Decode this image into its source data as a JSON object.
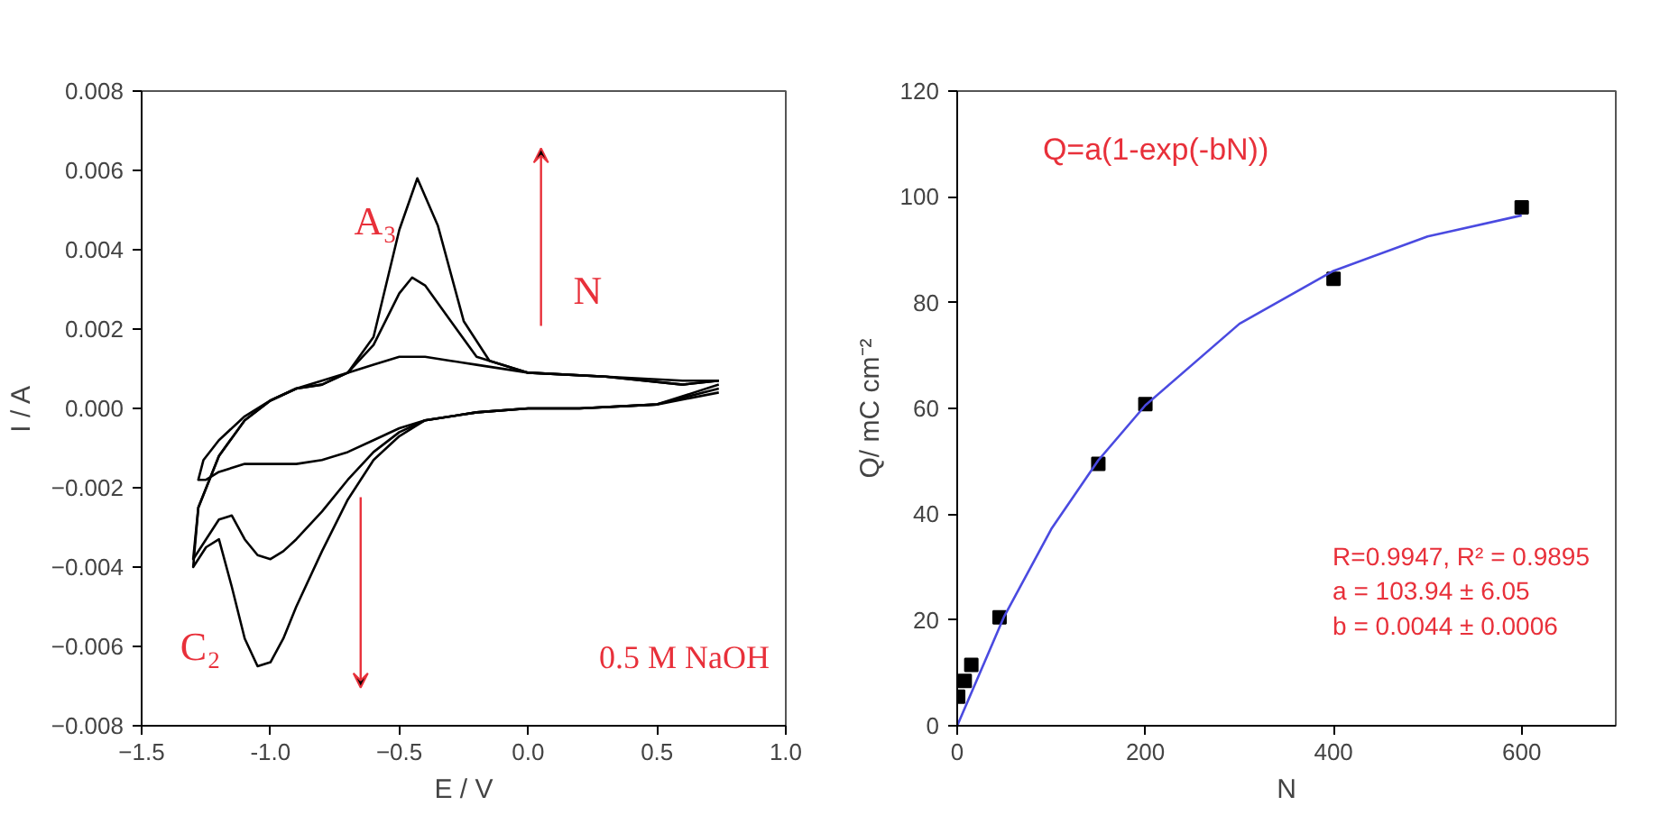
{
  "chart_data": [
    {
      "type": "line",
      "xlabel": "E / V",
      "ylabel": "I / A",
      "xlim": [
        -1.5,
        1.0
      ],
      "ylim": [
        -0.008,
        0.008
      ],
      "xticks": [
        -1.5,
        {
          "value": -1.0,
          "label": "-1.0"
        },
        -0.5,
        {
          "value": 0.0,
          "label": "0.0"
        },
        0.5,
        {
          "value": 1.0,
          "label": "1.0"
        }
      ],
      "yticks": [
        -0.008,
        -0.006,
        -0.004,
        -0.002,
        {
          "value": 0.0,
          "label": "0.000"
        },
        0.002,
        0.004,
        0.006,
        0.008
      ],
      "grid": false,
      "series": [
        {
          "color": "#000000",
          "x": [
            0.74,
            0.5,
            0.2,
            0.0,
            -0.2,
            -0.4,
            -0.5,
            -0.6,
            -0.7,
            -0.8,
            -0.9,
            -1.0,
            -1.1,
            -1.2,
            -1.25,
            -1.28,
            -1.26,
            -1.2,
            -1.1,
            -1.0,
            -0.9,
            -0.8,
            -0.7,
            -0.6,
            -0.5,
            -0.4,
            -0.3,
            -0.2,
            0.0,
            0.3,
            0.6,
            0.74
          ],
          "values": [
            0.0004,
            0.0001,
            0.0,
            0.0,
            -0.0001,
            -0.0003,
            -0.0005,
            -0.0008,
            -0.0011,
            -0.0013,
            -0.0014,
            -0.0014,
            -0.0014,
            -0.0016,
            -0.0018,
            -0.0018,
            -0.0013,
            -0.0008,
            -0.0002,
            0.0002,
            0.0005,
            0.0007,
            0.0009,
            0.0011,
            0.0013,
            0.0013,
            0.0012,
            0.0011,
            0.0009,
            0.0008,
            0.0007,
            0.0007
          ]
        },
        {
          "color": "#000000",
          "x": [
            0.74,
            0.5,
            0.2,
            0.0,
            -0.2,
            -0.4,
            -0.5,
            -0.6,
            -0.7,
            -0.8,
            -0.9,
            -0.95,
            -1.0,
            -1.05,
            -1.1,
            -1.15,
            -1.2,
            -1.25,
            -1.3,
            -1.28,
            -1.2,
            -1.1,
            -1.0,
            -0.9,
            -0.8,
            -0.7,
            -0.6,
            -0.5,
            -0.45,
            -0.4,
            -0.3,
            -0.2,
            0.0,
            0.3,
            0.6,
            0.74
          ],
          "values": [
            0.0005,
            0.0001,
            0.0,
            0.0,
            -0.0001,
            -0.0003,
            -0.0006,
            -0.0011,
            -0.0018,
            -0.0026,
            -0.0033,
            -0.0036,
            -0.0038,
            -0.0037,
            -0.0033,
            -0.0027,
            -0.0028,
            -0.0033,
            -0.0038,
            -0.0025,
            -0.0012,
            -0.0003,
            0.0002,
            0.0005,
            0.0006,
            0.0009,
            0.0016,
            0.0029,
            0.0033,
            0.0031,
            0.0022,
            0.0013,
            0.0009,
            0.0008,
            0.0006,
            0.0007
          ]
        },
        {
          "color": "#000000",
          "x": [
            0.74,
            0.5,
            0.2,
            0.0,
            -0.2,
            -0.4,
            -0.5,
            -0.6,
            -0.7,
            -0.8,
            -0.9,
            -0.95,
            -1.0,
            -1.05,
            -1.1,
            -1.15,
            -1.2,
            -1.25,
            -1.3,
            -1.28,
            -1.2,
            -1.1,
            -1.0,
            -0.9,
            -0.8,
            -0.7,
            -0.6,
            -0.5,
            -0.43,
            -0.35,
            -0.25,
            -0.15,
            0.0,
            0.3,
            0.6,
            0.74
          ],
          "values": [
            0.0006,
            0.0001,
            0.0,
            0.0,
            -0.0001,
            -0.0003,
            -0.0007,
            -0.0013,
            -0.0023,
            -0.0036,
            -0.005,
            -0.0058,
            -0.0064,
            -0.0065,
            -0.0058,
            -0.0045,
            -0.0033,
            -0.0035,
            -0.004,
            -0.0025,
            -0.0012,
            -0.0003,
            0.0002,
            0.0005,
            0.0006,
            0.0009,
            0.0018,
            0.0045,
            0.0058,
            0.0046,
            0.0022,
            0.0012,
            0.0009,
            0.0008,
            0.0006,
            0.0007
          ]
        }
      ],
      "annotations": [
        "A₃",
        "C₂",
        "N",
        "0.5 M NaOH"
      ]
    },
    {
      "type": "scatter",
      "xlabel": "N",
      "ylabel": "Q/ mC cm⁻²",
      "xlim": [
        0,
        700
      ],
      "ylim": [
        0,
        120
      ],
      "xticks": [
        0,
        200,
        400,
        600
      ],
      "yticks": [
        0,
        20,
        40,
        60,
        80,
        100,
        120
      ],
      "grid": false,
      "series": [
        {
          "color": "#000000",
          "marker": "square",
          "x": [
            1,
            8,
            15,
            45,
            150,
            200,
            400,
            600
          ],
          "values": [
            5.5,
            8.5,
            11.5,
            20.5,
            49.5,
            60.8,
            84.5,
            98
          ]
        },
        {
          "type": "line",
          "color": "#4a4ae0",
          "x": [
            0,
            50,
            100,
            150,
            200,
            300,
            400,
            500,
            600
          ],
          "values": [
            0,
            20.7,
            37.2,
            50.2,
            60.6,
            76.0,
            86.0,
            92.5,
            96.5
          ]
        }
      ],
      "annotations": [
        "Q=a(1-exp(-bN))",
        "R=0.9947, R² = 0.9895",
        "a = 103.94 ± 6.05",
        "b = 0.0044 ± 0.0006"
      ]
    }
  ]
}
